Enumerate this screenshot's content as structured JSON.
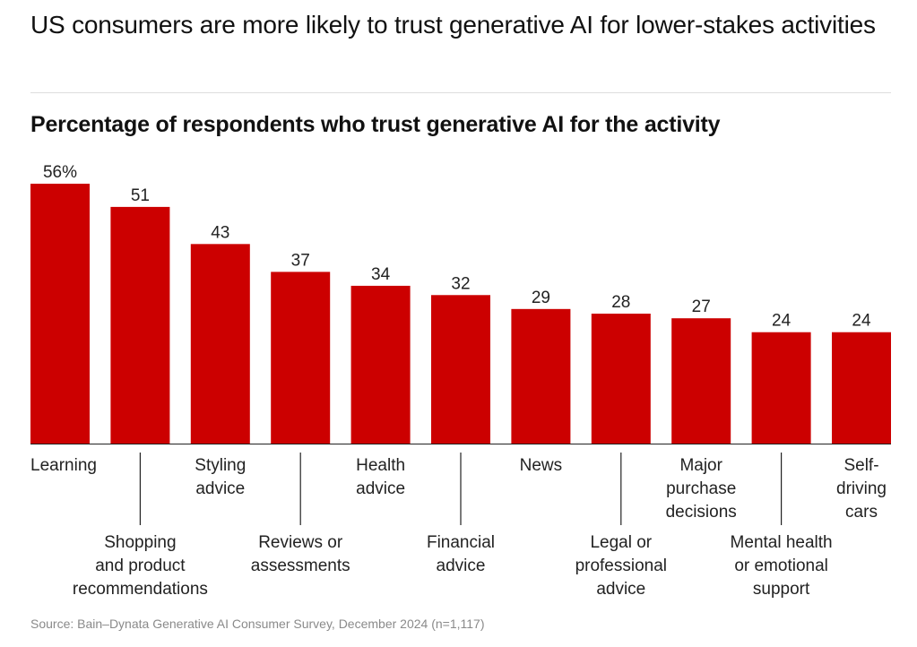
{
  "header": {
    "title": "US consumers are more likely to trust generative AI for lower-stakes activities",
    "subtitle": "Percentage of respondents who trust generative AI for the activity"
  },
  "footer": {
    "source": "Source: Bain–Dynata Generative AI Consumer Survey, December 2024 (n=1,117)"
  },
  "colors": {
    "bar": "#cc0000",
    "text": "#222222",
    "leader": "#222222"
  },
  "chart_data": {
    "type": "bar",
    "title": "Percentage of respondents who trust generative AI for the activity",
    "xlabel": "",
    "ylabel": "",
    "ylim": [
      0,
      56
    ],
    "grid": false,
    "categories": [
      [
        "Learning"
      ],
      [
        "Shopping",
        "and product",
        "recommendations"
      ],
      [
        "Styling",
        "advice"
      ],
      [
        "Reviews or",
        "assessments"
      ],
      [
        "Health",
        "advice"
      ],
      [
        "Financial",
        "advice"
      ],
      [
        "News"
      ],
      [
        "Legal or",
        "professional",
        "advice"
      ],
      [
        "Major",
        "purchase",
        "decisions"
      ],
      [
        "Mental health",
        "or emotional",
        "support"
      ],
      [
        "Self-",
        "driving",
        "cars"
      ]
    ],
    "values": [
      56,
      51,
      43,
      37,
      34,
      32,
      29,
      28,
      27,
      24,
      24
    ],
    "value_labels": [
      "56%",
      "51",
      "43",
      "37",
      "34",
      "32",
      "29",
      "28",
      "27",
      "24",
      "24"
    ]
  }
}
